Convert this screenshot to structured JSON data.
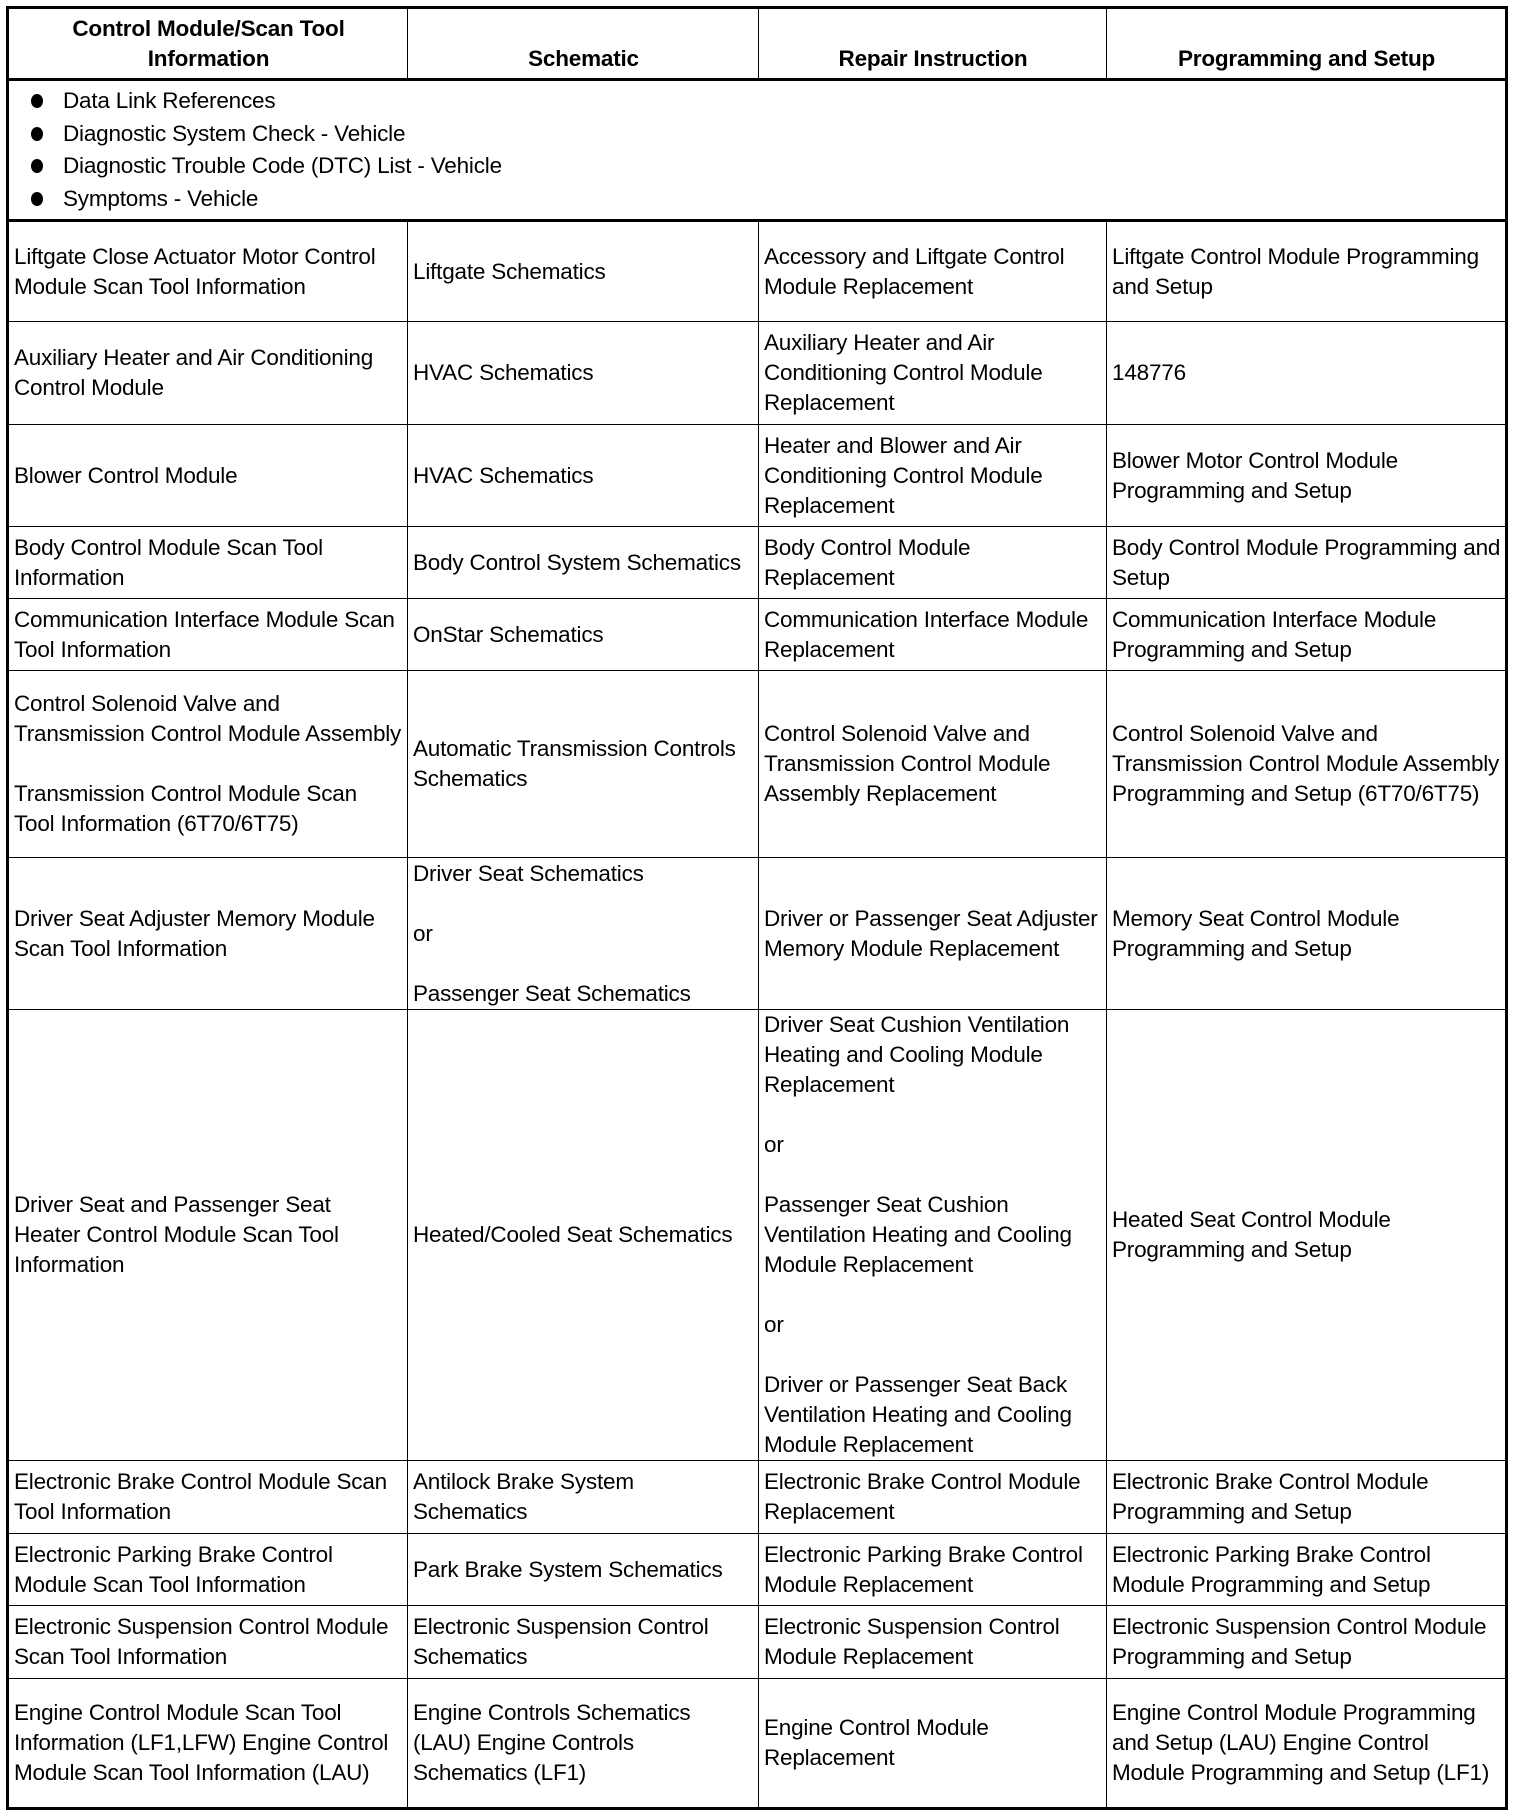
{
  "headers": [
    "Control Module/Scan Tool Information",
    "Schematic",
    "Repair Instruction",
    "Programming and Setup"
  ],
  "references": [
    "Data Link References",
    "Diagnostic System Check - Vehicle",
    "Diagnostic Trouble Code (DTC) List - Vehicle",
    "Symptoms - Vehicle"
  ],
  "rows": [
    [
      "Liftgate Close Actuator Motor Control Module Scan Tool Information",
      "Liftgate Schematics",
      "Accessory and Liftgate Control Module Replacement",
      "Liftgate Control Module Programming and Setup"
    ],
    [
      "Auxiliary Heater and Air Conditioning Control Module",
      "HVAC Schematics",
      "Auxiliary Heater and Air Conditioning Control Module Replacement",
      "148776"
    ],
    [
      "Blower Control Module",
      "HVAC Schematics",
      "Heater and Blower and Air Conditioning Control Module Replacement",
      "Blower Motor Control Module Programming and Setup"
    ],
    [
      "Body Control Module Scan Tool Information",
      "Body Control System Schematics",
      "Body Control Module Replacement",
      "Body Control Module Programming and Setup"
    ],
    [
      "Communication Interface Module Scan Tool Information",
      "OnStar Schematics",
      "Communication Interface Module Replacement",
      "Communication Interface Module Programming and Setup"
    ],
    [
      "Control Solenoid Valve and Transmission Control Module Assembly\n\nTransmission Control Module Scan Tool Information (6T70/6T75)",
      "Automatic Transmission Controls Schematics",
      "Control Solenoid Valve and Transmission Control Module Assembly Replacement",
      "Control Solenoid Valve and Transmission Control Module Assembly Programming and Setup (6T70/6T75)"
    ],
    [
      "Driver Seat Adjuster Memory Module Scan Tool Information",
      "Driver Seat Schematics\n\nor\n\nPassenger Seat Schematics",
      "Driver or Passenger Seat Adjuster Memory Module Replacement",
      "Memory Seat Control Module Programming and Setup"
    ],
    [
      "Driver Seat and Passenger Seat Heater Control Module Scan Tool Information",
      "Heated/Cooled Seat Schematics",
      "Driver Seat Cushion Ventilation Heating and Cooling Module Replacement\n\nor\n\nPassenger Seat Cushion Ventilation Heating and Cooling Module Replacement\n\nor\n\nDriver or Passenger Seat Back Ventilation Heating and Cooling Module Replacement",
      "Heated Seat Control Module Programming and Setup"
    ],
    [
      "Electronic Brake Control Module Scan Tool Information",
      "Antilock Brake System Schematics",
      "Electronic Brake Control Module Replacement",
      "Electronic Brake Control Module Programming and Setup"
    ],
    [
      "Electronic Parking Brake Control Module Scan Tool Information",
      "Park Brake System Schematics",
      "Electronic Parking Brake Control Module Replacement",
      "Electronic Parking Brake Control Module Programming and Setup"
    ],
    [
      "Electronic Suspension Control Module Scan Tool Information",
      "Electronic Suspension Control Schematics",
      "Electronic Suspension Control Module Replacement",
      "Electronic Suspension Control Module Programming and Setup"
    ],
    [
      "Engine Control Module Scan Tool Information (LF1,LFW) Engine Control Module Scan Tool Information (LAU)",
      "Engine Controls Schematics (LAU) Engine Controls Schematics (LF1)",
      "Engine Control Module Replacement",
      "Engine Control Module Programming and Setup (LAU) Engine Control Module Programming and Setup (LF1)"
    ]
  ]
}
